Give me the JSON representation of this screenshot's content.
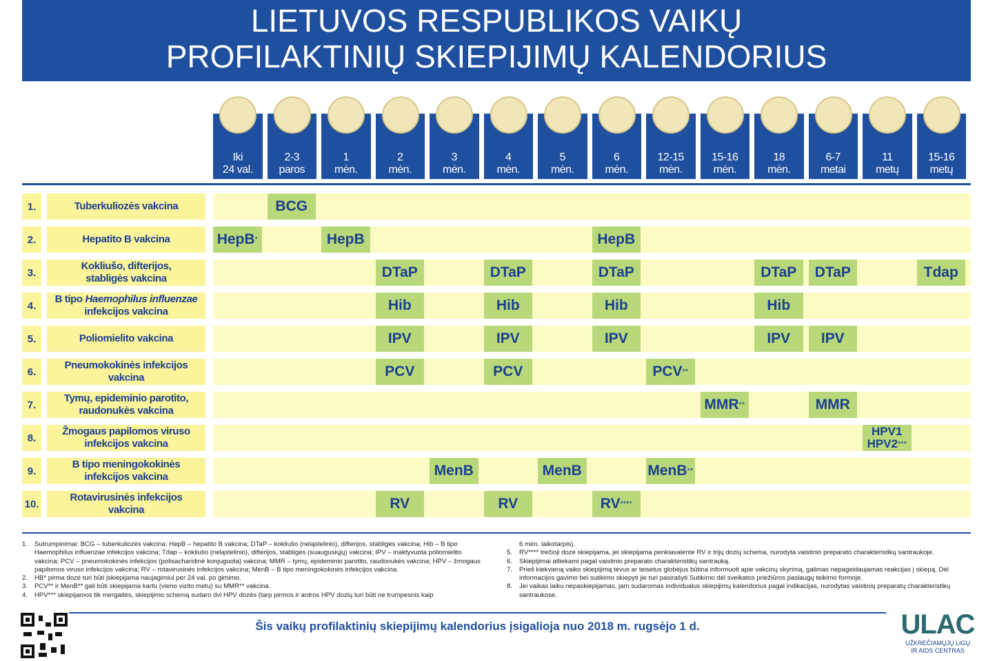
{
  "title": [
    "LIETUVOS RESPUBLIKOS VAIKŲ",
    "PROFILAKTINIŲ SKIEPIJIMŲ KALENDORIUS"
  ],
  "ages": [
    [
      "Iki",
      "24 val."
    ],
    [
      "2-3",
      "paros"
    ],
    [
      "1",
      "mėn."
    ],
    [
      "2",
      "mėn."
    ],
    [
      "3",
      "mėn."
    ],
    [
      "4",
      "mėn."
    ],
    [
      "5",
      "mėn."
    ],
    [
      "6",
      "mėn."
    ],
    [
      "12-15",
      "mėn."
    ],
    [
      "15-16",
      "mėn."
    ],
    [
      "18",
      "mėn."
    ],
    [
      "6-7",
      "metai"
    ],
    [
      "11",
      "metų"
    ],
    [
      "15-16",
      "metų"
    ]
  ],
  "rows": [
    {
      "num": "1.",
      "name": [
        "Tuberkuliozės vakcina"
      ],
      "cells": [
        null,
        {
          "label": "BCG"
        },
        null,
        null,
        null,
        null,
        null,
        null,
        null,
        null,
        null,
        null,
        null,
        null
      ]
    },
    {
      "num": "2.",
      "name": [
        "Hepatito B vakcina"
      ],
      "cells": [
        {
          "label": "HepB",
          "sup": "*"
        },
        null,
        {
          "label": "HepB"
        },
        null,
        null,
        null,
        null,
        {
          "label": "HepB"
        },
        null,
        null,
        null,
        null,
        null,
        null
      ]
    },
    {
      "num": "3.",
      "name": [
        "Kokliušo, difterijos,",
        "stabligės vakcina"
      ],
      "cells": [
        null,
        null,
        null,
        {
          "label": "DTaP"
        },
        null,
        {
          "label": "DTaP"
        },
        null,
        {
          "label": "DTaP"
        },
        null,
        null,
        {
          "label": "DTaP"
        },
        {
          "label": "DTaP"
        },
        null,
        {
          "label": "Tdap"
        }
      ]
    },
    {
      "num": "4.",
      "name": [
        [
          {
            "t": "B tipo "
          },
          {
            "t": "Haemophilus influenzae",
            "i": true
          }
        ],
        "infekcijos vakcina"
      ],
      "cells": [
        null,
        null,
        null,
        {
          "label": "Hib"
        },
        null,
        {
          "label": "Hib"
        },
        null,
        {
          "label": "Hib"
        },
        null,
        null,
        {
          "label": "Hib"
        },
        null,
        null,
        null
      ]
    },
    {
      "num": "5.",
      "name": [
        "Poliomielito vakcina"
      ],
      "cells": [
        null,
        null,
        null,
        {
          "label": "IPV"
        },
        null,
        {
          "label": "IPV"
        },
        null,
        {
          "label": "IPV"
        },
        null,
        null,
        {
          "label": "IPV"
        },
        {
          "label": "IPV"
        },
        null,
        null
      ]
    },
    {
      "num": "6.",
      "name": [
        "Pneumokokinės infekcijos",
        "vakcina"
      ],
      "cells": [
        null,
        null,
        null,
        {
          "label": "PCV"
        },
        null,
        {
          "label": "PCV"
        },
        null,
        null,
        {
          "label": "PCV",
          "sup": "**"
        },
        null,
        null,
        null,
        null,
        null
      ]
    },
    {
      "num": "7.",
      "name": [
        "Tymų, epideminio parotito,",
        "raudonukės vakcina"
      ],
      "cells": [
        null,
        null,
        null,
        null,
        null,
        null,
        null,
        null,
        null,
        {
          "label": "MMR",
          "sup": "**"
        },
        null,
        {
          "label": "MMR"
        },
        null,
        null
      ]
    },
    {
      "num": "8.",
      "name": [
        "Žmogaus papilomos viruso",
        "infekcijos vakcina"
      ],
      "cells": [
        null,
        null,
        null,
        null,
        null,
        null,
        null,
        null,
        null,
        null,
        null,
        null,
        {
          "label": "HPV1",
          "label2": "HPV2",
          "sup": "***"
        },
        null
      ]
    },
    {
      "num": "9.",
      "name": [
        "B tipo meningokokinės",
        "infekcijos vakcina"
      ],
      "cells": [
        null,
        null,
        null,
        null,
        {
          "label": "MenB"
        },
        null,
        {
          "label": "MenB"
        },
        null,
        {
          "label": "MenB",
          "sup": "**"
        },
        null,
        null,
        null,
        null,
        null
      ]
    },
    {
      "num": "10.",
      "name": [
        "Rotavirusinės infekcijos",
        "vakcina"
      ],
      "cells": [
        null,
        null,
        null,
        {
          "label": "RV"
        },
        null,
        {
          "label": "RV"
        },
        null,
        {
          "label": "RV",
          "sup": "****"
        },
        null,
        null,
        null,
        null,
        null,
        null
      ]
    }
  ],
  "notes_left": [
    {
      "n": "1.",
      "t": "Sutrumpinimai: BCG – tuberkuliozės vakcina; HepB – hepatito B vakcina; DTaP – kokliušo (neląstelinio), difterijos, stabligės vakcina; Hib – B tipo Haemophilus influenzae infekcijos vakcina; Tdap – kokliušo (neląstelinio), difterijos, stabligės (suaugusiųjų) vakcina; IPV – inaktyvuota poliomielito vakcina; PCV – pneumokokinės infekcijos (polisacharidinė konjuguota) vakcina; MMR – tymų, epideminio parotito, raudonukės vakcina; HPV – žmogaus papilomos viruso infekcijos vakcina; RV – rotavirusinės infekcijos vakcina; MenB – B tipo meningokokinės infekcijos vakcina."
    },
    {
      "n": "2.",
      "t": "HB* pirma dozė turi būti įskiepijama naujagimiui per 24 val. po gimimo."
    },
    {
      "n": "3.",
      "t": "PCV** ir MenB** gali būti skiepijama kartu (vieno vizito metu) su MMR** vakcina."
    },
    {
      "n": "4.",
      "t": "HPV*** skiepijamos tik mergaitės, skiepijimo schemą sudaro dvi HPV dozės (tarp pirmos ir antros HPV dozių turi būti ne trumpesnis kaip"
    }
  ],
  "notes_right": [
    {
      "n": "",
      "t": "6 mėn. laikotarpis)."
    },
    {
      "n": "5.",
      "t": "RV**** trečioji dozė skiepijama, jei skiepijama penkiavalente RV ir trijų dozių schema, nurodyta vaistinio preparato charakteristikų santraukoje."
    },
    {
      "n": "6.",
      "t": "Skiepijimai atliekami pagal vaistinio preparato charakteristikų santrauką."
    },
    {
      "n": "7.",
      "t": "Prieš kiekvieną vaiko skiepijimą tėvus ar teisėtus globėjus būtina informuoti apie vakcinų skyrimą, galimas nepageidaujamas reakcijas į skiepą. Dėl informacijos gavimo bei sutikimo skiepyti jie turi pasirašyti Sutikimo dėl sveikatos priežiūros paslaugų teikimo formoje."
    },
    {
      "n": "8.",
      "t": "Jei vaikas laiku nepaskiepijamas, jam sudaromas individualus skiepijimų kalendorius pagal indikacijas, nurodytas vaistinių preparatų charakteristikų santraukose."
    }
  ],
  "bottom": "Šis vaikų profilaktinių skiepijimų kalendorius įsigalioja nuo 2018 m. rugsėjo 1 d.",
  "logo": {
    "name": "ULAC",
    "sub": [
      "UŽKREČIAMŲJŲ LIGŲ",
      "IR AIDS CENTRAS"
    ]
  }
}
